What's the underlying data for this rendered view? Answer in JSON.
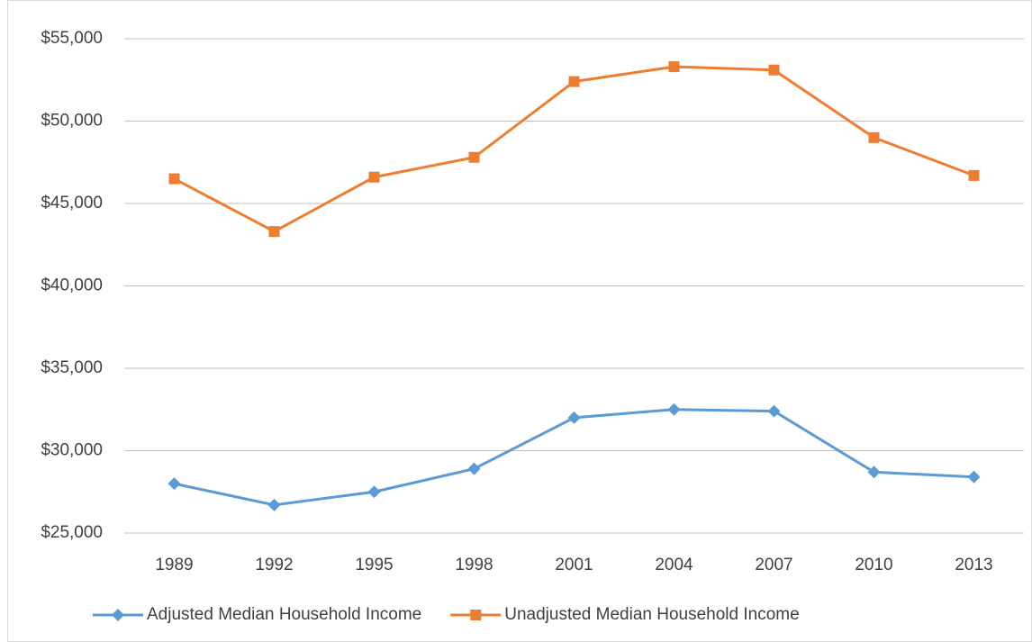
{
  "chart_data": {
    "type": "line",
    "categories": [
      "1989",
      "1992",
      "1995",
      "1998",
      "2001",
      "2004",
      "2007",
      "2010",
      "2013"
    ],
    "series": [
      {
        "name": "Adjusted Median Household Income",
        "color": "#5b9bd5",
        "marker": "diamond",
        "values": [
          28000,
          26700,
          27500,
          28900,
          32000,
          32500,
          32400,
          28700,
          28400
        ]
      },
      {
        "name": "Unadjusted Median Household Income",
        "color": "#ed7d31",
        "marker": "square",
        "values": [
          46500,
          43300,
          46600,
          47800,
          52400,
          53300,
          53100,
          49000,
          46700
        ]
      }
    ],
    "ylim": [
      25000,
      55000
    ],
    "yticks": [
      {
        "value": 25000,
        "label": "$25,000"
      },
      {
        "value": 30000,
        "label": "$30,000"
      },
      {
        "value": 35000,
        "label": "$35,000"
      },
      {
        "value": 40000,
        "label": "$40,000"
      },
      {
        "value": 45000,
        "label": "$45,000"
      },
      {
        "value": 50000,
        "label": "$50,000"
      },
      {
        "value": 55000,
        "label": "$55,000"
      }
    ],
    "grid": true,
    "legend": "bottom"
  }
}
